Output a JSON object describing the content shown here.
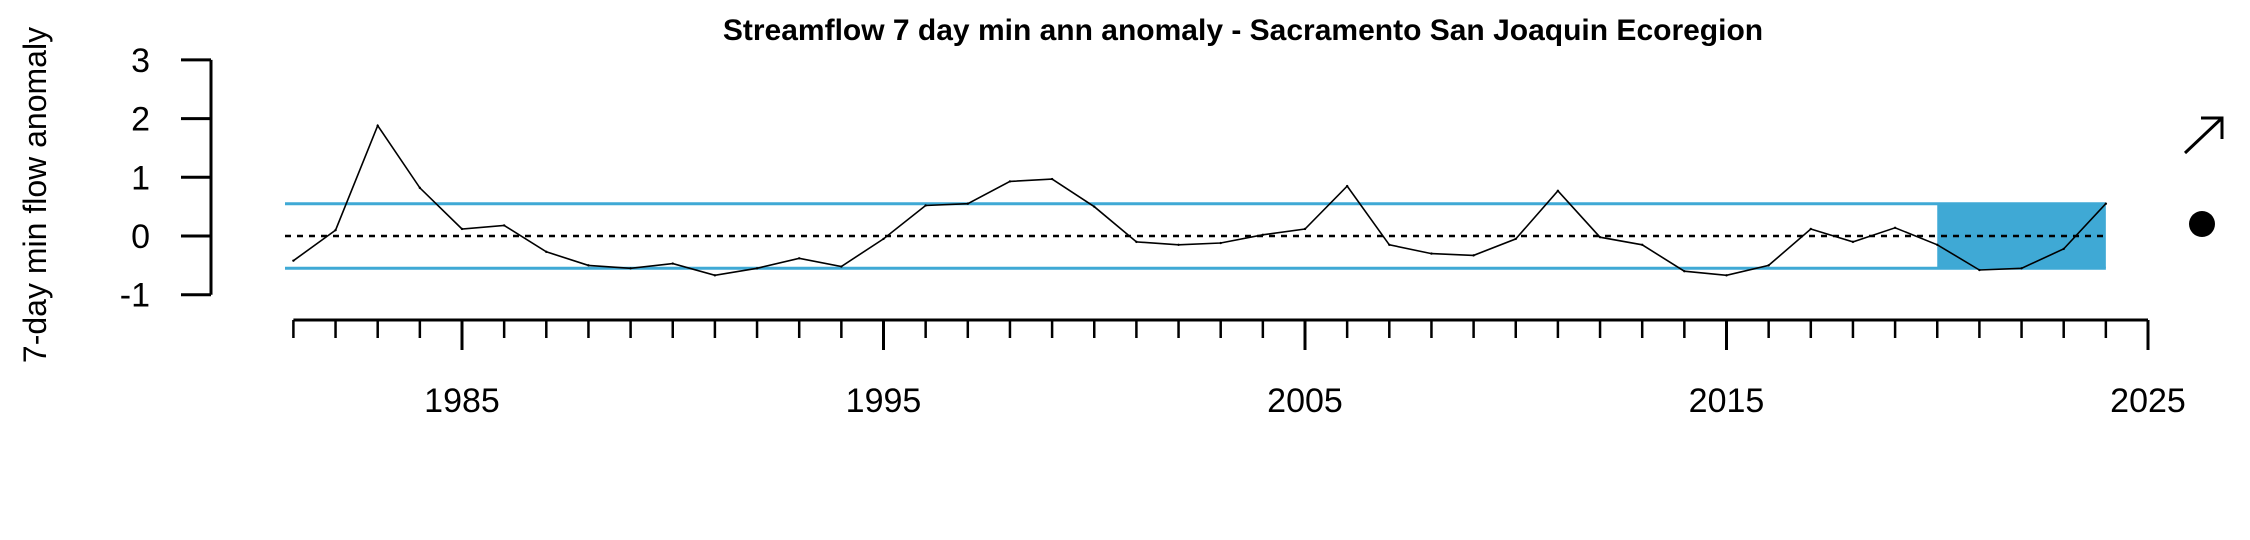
{
  "chart_data": {
    "type": "line",
    "title": "Streamflow 7 day min ann anomaly - Sacramento San Joaquin Ecoregion",
    "ylabel": "7-day min flow anomaly",
    "xlabel": "",
    "xlim": [
      1980,
      2025
    ],
    "ylim": [
      -1,
      3
    ],
    "x_tick_labels": [
      "1985",
      "1995",
      "2005",
      "2015",
      "2025"
    ],
    "y_tick_labels": [
      "3",
      "2",
      "1",
      "0",
      "-1"
    ],
    "x_ticks_major": [
      1985,
      1995,
      2005,
      2015,
      2025
    ],
    "y_ticks": [
      3,
      2,
      1,
      0,
      -1
    ],
    "reference_line": 0,
    "band": {
      "lower": -0.55,
      "upper": 0.55
    },
    "highlight": {
      "x_start": 2020,
      "x_end": 2024
    },
    "series": [
      {
        "x": [
          1981,
          1982,
          1983,
          1984,
          1985,
          1986,
          1987,
          1988,
          1989,
          1990,
          1991,
          1992,
          1993,
          1994,
          1995,
          1996,
          1997,
          1998,
          1999,
          2000,
          2001,
          2002,
          2003,
          2004,
          2005,
          2006,
          2007,
          2008,
          2009,
          2010,
          2011,
          2012,
          2013,
          2014,
          2015,
          2016,
          2017,
          2018,
          2019,
          2020,
          2021,
          2022,
          2023,
          2024
        ],
        "values": [
          -0.42,
          0.1,
          1.88,
          0.82,
          0.12,
          0.18,
          -0.27,
          -0.5,
          -0.55,
          -0.47,
          -0.67,
          -0.55,
          -0.38,
          -0.52,
          -0.05,
          0.52,
          0.55,
          0.93,
          0.97,
          0.5,
          -0.1,
          -0.15,
          -0.12,
          0.02,
          0.12,
          0.85,
          -0.15,
          -0.3,
          -0.33,
          -0.05,
          0.77,
          -0.02,
          -0.15,
          -0.6,
          -0.67,
          -0.5,
          0.12,
          -0.1,
          0.14,
          -0.15,
          -0.58,
          -0.55,
          -0.22,
          0.55
        ]
      }
    ],
    "colors": {
      "band": "#3fa9d5",
      "highlight": "#3fa9d5",
      "line": "#000000"
    },
    "trend_icon": "arrow-up-right-icon",
    "status_icon": "filled-dot-icon"
  }
}
